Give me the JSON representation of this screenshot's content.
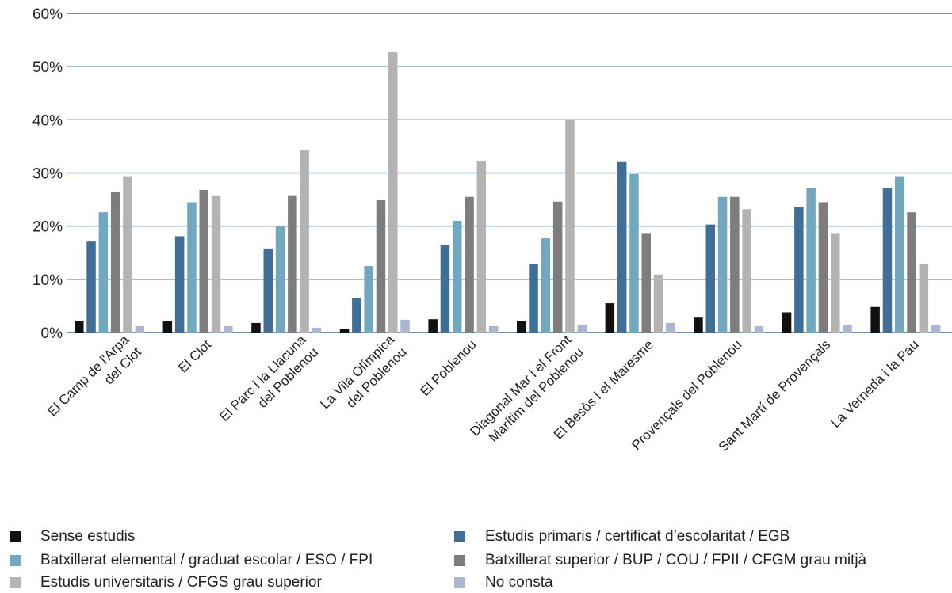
{
  "chart_data": {
    "type": "bar",
    "title": "",
    "xlabel": "",
    "ylabel": "",
    "ylim": [
      0,
      60
    ],
    "ytick_labels": [
      "0%",
      "10%",
      "20%",
      "30%",
      "40%",
      "50%",
      "60%"
    ],
    "grid": "horizontal",
    "legend_position": "bottom",
    "categories": [
      [
        "El Camp de l'Arpa",
        "del Clot"
      ],
      [
        "El Clot"
      ],
      [
        "El Parc i la Llacuna",
        "del Poblenou"
      ],
      [
        "La Vila Olímpica",
        "del Poblenou"
      ],
      [
        "El Poblenou"
      ],
      [
        "Diagonal Mar i el Front",
        "Marítim del Poblenou"
      ],
      [
        "El Besòs i el Maresme"
      ],
      [
        "Provençals del Poblenou"
      ],
      [
        "Sant Martí de Provençals"
      ],
      [
        "La Verneda i la Pau"
      ]
    ],
    "series": [
      {
        "name": "Sense estudis",
        "color": "#111111",
        "values": [
          2.1,
          2.1,
          1.8,
          0.6,
          2.5,
          2.1,
          5.5,
          2.8,
          3.8,
          4.8
        ]
      },
      {
        "name": "Estudis primaris / certificat d’escolaritat / EGB",
        "color": "#3f6e96",
        "values": [
          17.1,
          18.1,
          15.8,
          6.4,
          16.5,
          12.9,
          32.2,
          20.3,
          23.6,
          27.1
        ]
      },
      {
        "name": "Batxillerat elemental / graduat escolar / ESO / FPI",
        "color": "#72a7c0",
        "values": [
          22.6,
          24.5,
          20.0,
          12.5,
          21.0,
          17.7,
          29.8,
          25.5,
          27.1,
          29.4
        ]
      },
      {
        "name": "Batxillerat superior / BUP / COU / FPII / CFGM grau mitjà",
        "color": "#7d7d7d",
        "values": [
          26.5,
          26.8,
          25.8,
          24.9,
          25.5,
          24.6,
          18.7,
          25.5,
          24.5,
          22.6
        ]
      },
      {
        "name": "Estudis universitaris / CFGS grau superior",
        "color": "#b3b3b3",
        "values": [
          29.4,
          25.8,
          34.3,
          52.7,
          32.3,
          39.9,
          10.9,
          23.2,
          18.7,
          12.9
        ]
      },
      {
        "name": "No consta",
        "color": "#a9b6cf",
        "values": [
          1.2,
          1.2,
          0.9,
          2.4,
          1.2,
          1.5,
          1.8,
          1.2,
          1.5,
          1.5
        ]
      }
    ]
  },
  "legend": [
    {
      "label": "Sense estudis",
      "color": "#111111"
    },
    {
      "label": "Estudis primaris / certificat d’escolaritat / EGB",
      "color": "#3f6e96"
    },
    {
      "label": "Batxillerat elemental / graduat escolar / ESO / FPI",
      "color": "#72a7c0"
    },
    {
      "label": "Batxillerat superior / BUP / COU / FPII / CFGM grau mitjà",
      "color": "#7d7d7d"
    },
    {
      "label": "Estudis universitaris / CFGS grau superior",
      "color": "#b3b3b3"
    },
    {
      "label": "No consta",
      "color": "#a9b6cf"
    }
  ],
  "colors": {
    "gridline": "#1f4f73"
  }
}
